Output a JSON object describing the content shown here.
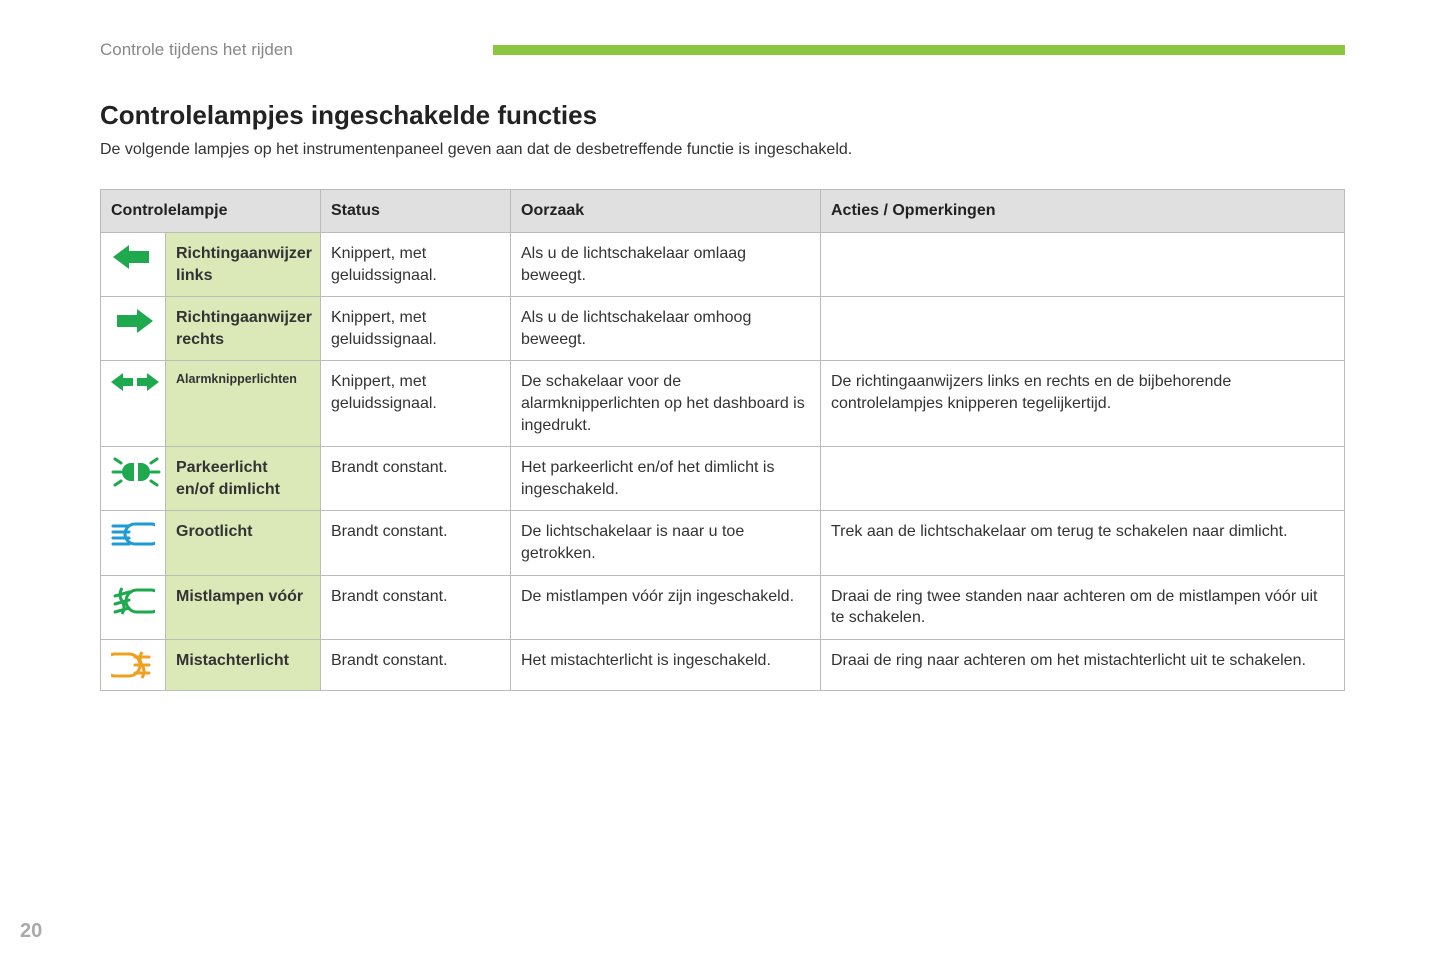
{
  "header": {
    "section_label": "Controle tijdens het rijden",
    "accent_color": "#8cc63f"
  },
  "title": "Controlelampjes ingeschakelde functies",
  "intro": "De volgende lampjes op het instrumentenpaneel geven aan dat de desbetreffende functie is ingeschakeld.",
  "columns": {
    "lamp": "Controlelampje",
    "status": "Status",
    "cause": "Oorzaak",
    "actions": "Acties / Opmerkingen"
  },
  "rows": [
    {
      "icon": "turn-left",
      "icon_color": "#1fa94f",
      "name": "Richtingaanwijzer links",
      "status": "Knippert, met geluidssignaal.",
      "cause": "Als u de lichtschakelaar omlaag beweegt.",
      "actions": ""
    },
    {
      "icon": "turn-right",
      "icon_color": "#1fa94f",
      "name": "Richtingaanwijzer rechts",
      "status": "Knippert, met geluidssignaal.",
      "cause": "Als u de lichtschakelaar omhoog beweegt.",
      "actions": ""
    },
    {
      "icon": "hazard",
      "icon_color": "#1fa94f",
      "name": "Alarmknipperlichten",
      "name_small": true,
      "status": "Knippert, met geluidssignaal.",
      "cause": "De schakelaar voor de alarmknipperlichten op het dashboard is ingedrukt.",
      "actions": "De richtingaanwijzers links en rechts en de bijbehorende controlelampjes knipperen tegelijkertijd."
    },
    {
      "icon": "parking-light",
      "icon_color": "#1fa94f",
      "name": "Parkeerlicht en/of dimlicht",
      "status": "Brandt constant.",
      "cause": "Het parkeerlicht en/of het dimlicht is ingeschakeld.",
      "actions": ""
    },
    {
      "icon": "high-beam",
      "icon_color": "#1e9bd6",
      "name": "Grootlicht",
      "status": "Brandt constant.",
      "cause": "De lichtschakelaar is naar u toe getrokken.",
      "actions": "Trek aan de lichtschakelaar om terug te schakelen naar dimlicht."
    },
    {
      "icon": "fog-front",
      "icon_color": "#1fa94f",
      "name": "Mistlampen vóór",
      "status": "Brandt constant.",
      "cause": "De mistlampen vóór zijn ingeschakeld.",
      "actions": "Draai de ring twee standen naar achteren om de mistlampen vóór uit te schakelen."
    },
    {
      "icon": "fog-rear",
      "icon_color": "#f0a020",
      "name": "Mistachterlicht",
      "status": "Brandt constant.",
      "cause": "Het mistachterlicht is ingeschakeld.",
      "actions": "Draai de ring naar achteren om het mistachterlicht uit te schakelen."
    }
  ],
  "page_number": "20",
  "colors": {
    "header_bg": "#e0e0e0",
    "name_bg": "#dbe8b8",
    "border": "#bbbbbb",
    "text": "#333333",
    "muted": "#888888"
  }
}
